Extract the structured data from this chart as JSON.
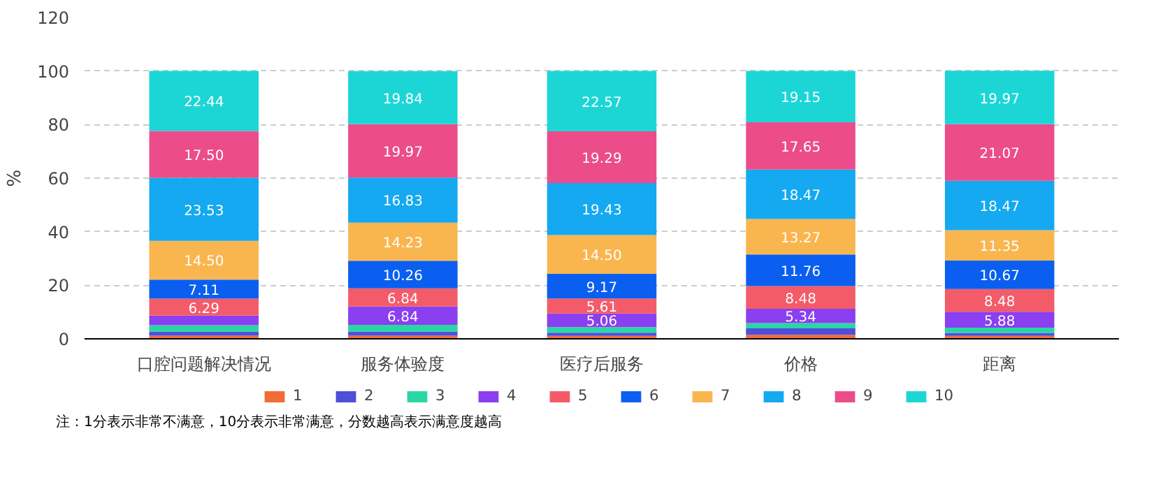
{
  "chart_data": {
    "type": "bar",
    "stacked": true,
    "ylabel": "%",
    "categories": [
      "口腔问题解决情况",
      "服务体验度",
      "医疗后服务",
      "价格",
      "距离"
    ],
    "series": [
      {
        "name": "1",
        "color": "#f26b38",
        "values": [
          1.2,
          1.2,
          1.1,
          1.5,
          1.1
        ],
        "value_labels": [
          null,
          null,
          null,
          null,
          null
        ]
      },
      {
        "name": "2",
        "color": "#4f4fd9",
        "values": [
          1.5,
          1.5,
          1.2,
          2.4,
          1.1
        ],
        "value_labels": [
          null,
          null,
          null,
          null,
          null
        ]
      },
      {
        "name": "3",
        "color": "#2ad6a4",
        "values": [
          2.4,
          2.5,
          2.1,
          2.0,
          2.0
        ],
        "value_labels": [
          null,
          null,
          null,
          null,
          null
        ]
      },
      {
        "name": "4",
        "color": "#8a3ff0",
        "values": [
          3.6,
          6.84,
          5.06,
          5.34,
          5.88
        ],
        "value_labels": [
          null,
          "6.84",
          "5.06",
          "5.34",
          "5.88"
        ]
      },
      {
        "name": "5",
        "color": "#f45b69",
        "values": [
          6.29,
          6.84,
          5.61,
          8.48,
          8.48
        ],
        "value_labels": [
          "6.29",
          "6.84",
          "5.61",
          "8.48",
          "8.48"
        ]
      },
      {
        "name": "6",
        "color": "#0a5ff0",
        "values": [
          7.11,
          10.26,
          9.17,
          11.76,
          10.67
        ],
        "value_labels": [
          "7.11",
          "10.26",
          "9.17",
          "11.76",
          "10.67"
        ]
      },
      {
        "name": "7",
        "color": "#f9b64f",
        "values": [
          14.5,
          14.23,
          14.5,
          13.27,
          11.35
        ],
        "value_labels": [
          "14.50",
          "14.23",
          "14.50",
          "13.27",
          "11.35"
        ]
      },
      {
        "name": "8",
        "color": "#14a9f0",
        "values": [
          23.53,
          16.83,
          19.43,
          18.47,
          18.47
        ],
        "value_labels": [
          "23.53",
          "16.83",
          "19.43",
          "18.47",
          "18.47"
        ]
      },
      {
        "name": "9",
        "color": "#ec4c8a",
        "values": [
          17.5,
          19.97,
          19.29,
          17.65,
          21.07
        ],
        "value_labels": [
          "17.50",
          "19.97",
          "19.29",
          "17.65",
          "21.07"
        ]
      },
      {
        "name": "10",
        "color": "#1cd6d6",
        "values": [
          22.44,
          19.84,
          22.57,
          19.15,
          19.97
        ],
        "value_labels": [
          "22.44",
          "19.84",
          "22.57",
          "19.15",
          "19.97"
        ]
      }
    ],
    "ylim": [
      0,
      120
    ],
    "yticks": [
      0,
      20,
      40,
      60,
      80,
      100,
      120
    ],
    "grid": "y",
    "legend": "bottom",
    "annotations": [
      "注：1分表示非常不满意，10分表示非常满意，分数越高表示满意度越高"
    ]
  }
}
